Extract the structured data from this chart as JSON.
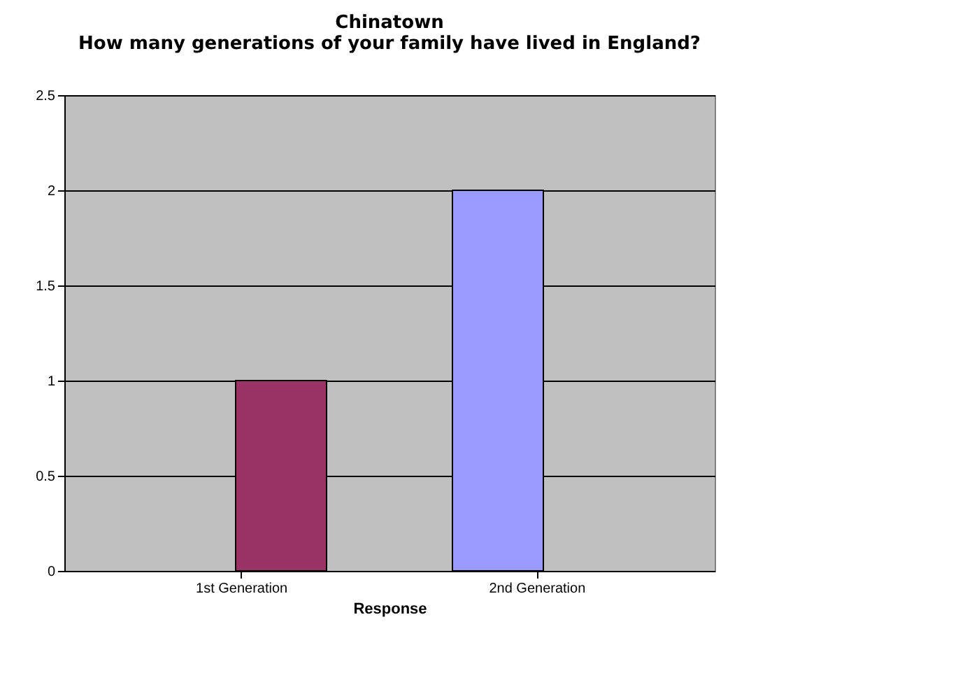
{
  "chart_data": {
    "type": "bar",
    "title": "Chinatown",
    "subtitle": "How many generations of your family have lived in England?",
    "xlabel": "Response",
    "categories": [
      "1st Generation",
      "2nd Generation"
    ],
    "series": [
      {
        "color": "#9999ff",
        "values": [
          null,
          2
        ]
      },
      {
        "color": "#993366",
        "values": [
          1,
          null
        ]
      }
    ],
    "ylim": [
      0,
      2.5
    ],
    "yticks": [
      0,
      0.5,
      1,
      1.5,
      2,
      2.5
    ],
    "grid": "y"
  }
}
